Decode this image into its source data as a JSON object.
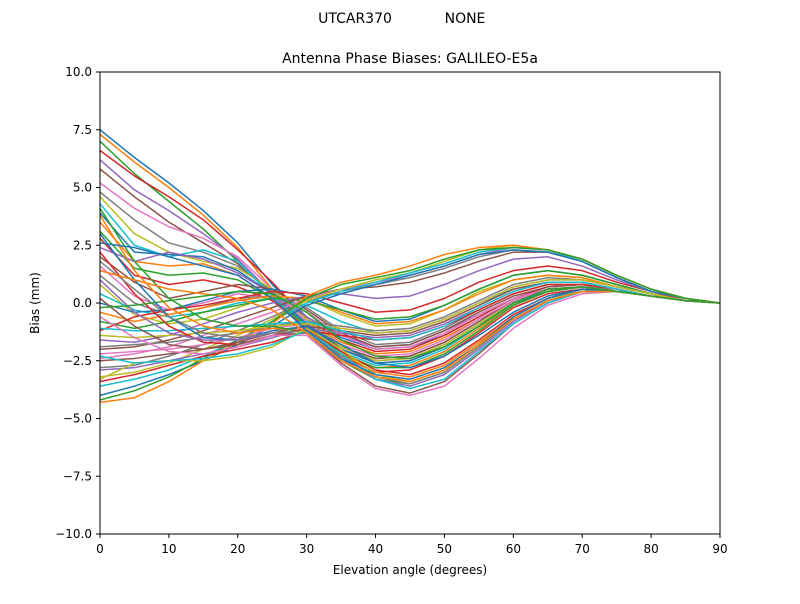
{
  "figure": {
    "suptitle_left": "UTCAR370",
    "suptitle_right": "NONE"
  },
  "chart_data": {
    "type": "line",
    "title": "Antenna Phase Biases: GALILEO-E5a",
    "xlabel": "Elevation angle (degrees)",
    "ylabel": "Bias (mm)",
    "xlim": [
      0,
      90
    ],
    "ylim": [
      -10,
      10
    ],
    "xticks": [
      0,
      10,
      20,
      30,
      40,
      50,
      60,
      70,
      80,
      90
    ],
    "yticks": [
      -10.0,
      -7.5,
      -5.0,
      -2.5,
      0.0,
      2.5,
      5.0,
      7.5,
      10.0
    ],
    "ytick_labels": [
      "−10.0",
      "−7.5",
      "−5.0",
      "−2.5",
      "0.0",
      "2.5",
      "5.0",
      "7.5",
      "10.0"
    ],
    "grid": false,
    "legend": "none",
    "colors": [
      "#1f77b4",
      "#ff7f0e",
      "#2ca02c",
      "#d62728",
      "#9467bd",
      "#8c564b",
      "#e377c2",
      "#7f7f7f",
      "#bcbd22",
      "#17becf"
    ],
    "x": [
      0,
      5,
      10,
      15,
      20,
      25,
      30,
      35,
      40,
      45,
      50,
      55,
      60,
      65,
      70,
      75,
      80,
      85,
      90
    ],
    "series": [
      {
        "values": [
          7.5,
          6.3,
          5.2,
          4.0,
          2.6,
          0.8,
          -0.6,
          -1.5,
          -2.0,
          -1.9,
          -1.4,
          -0.6,
          0.2,
          0.6,
          0.7,
          0.5,
          0.3,
          0.1,
          0.0
        ]
      },
      {
        "values": [
          7.3,
          6.1,
          5.0,
          3.8,
          2.4,
          0.6,
          -0.8,
          -1.7,
          -2.2,
          -2.1,
          -1.5,
          -0.7,
          0.1,
          0.6,
          0.7,
          0.5,
          0.3,
          0.1,
          0.0
        ]
      },
      {
        "values": [
          7.0,
          5.6,
          4.4,
          3.2,
          1.8,
          0.3,
          -1.0,
          -1.9,
          -2.4,
          -2.3,
          -1.7,
          -0.8,
          0.1,
          0.6,
          0.7,
          0.5,
          0.3,
          0.1,
          0.0
        ]
      },
      {
        "values": [
          6.6,
          5.5,
          4.6,
          3.6,
          2.3,
          0.9,
          -0.7,
          -1.6,
          -2.1,
          -2.0,
          -1.4,
          -0.6,
          0.2,
          0.7,
          0.8,
          0.5,
          0.3,
          0.1,
          0.0
        ]
      },
      {
        "values": [
          6.2,
          4.9,
          4.0,
          3.0,
          1.9,
          0.4,
          -1.0,
          -2.0,
          -2.5,
          -2.4,
          -1.8,
          -0.9,
          0.0,
          0.5,
          0.7,
          0.5,
          0.3,
          0.1,
          0.0
        ]
      },
      {
        "values": [
          5.8,
          4.6,
          3.5,
          2.6,
          1.7,
          0.4,
          -0.9,
          -1.9,
          -2.4,
          -2.3,
          -1.7,
          -0.8,
          0.1,
          0.6,
          0.7,
          0.5,
          0.3,
          0.1,
          0.0
        ]
      },
      {
        "values": [
          5.2,
          4.1,
          3.3,
          2.8,
          2.0,
          0.6,
          -0.8,
          -1.8,
          -2.3,
          -2.2,
          -1.6,
          -0.7,
          0.1,
          0.6,
          0.7,
          0.5,
          0.3,
          0.1,
          0.0
        ]
      },
      {
        "values": [
          4.8,
          3.6,
          2.6,
          2.2,
          1.6,
          0.5,
          -0.9,
          -2.0,
          -2.6,
          -2.5,
          -1.9,
          -1.0,
          0.0,
          0.5,
          0.7,
          0.5,
          0.3,
          0.1,
          0.0
        ]
      },
      {
        "values": [
          4.6,
          3.0,
          2.2,
          1.8,
          1.5,
          0.6,
          -0.7,
          -1.9,
          -2.5,
          -2.4,
          -1.8,
          -0.9,
          0.0,
          0.5,
          0.7,
          0.5,
          0.3,
          0.1,
          0.0
        ]
      },
      {
        "values": [
          4.3,
          2.5,
          2.0,
          2.3,
          1.8,
          0.3,
          -1.0,
          -2.1,
          -2.7,
          -2.6,
          -2.0,
          -1.0,
          -0.1,
          0.5,
          0.7,
          0.5,
          0.3,
          0.1,
          0.0
        ]
      },
      {
        "values": [
          3.9,
          2.2,
          2.1,
          2.0,
          1.4,
          0.4,
          -0.9,
          -2.0,
          -2.6,
          -2.5,
          -1.9,
          -1.0,
          0.0,
          0.5,
          0.7,
          0.5,
          0.3,
          0.1,
          0.0
        ]
      },
      {
        "values": [
          3.5,
          1.8,
          1.6,
          1.7,
          1.2,
          0.2,
          -1.1,
          -2.2,
          -2.8,
          -2.7,
          -2.1,
          -1.1,
          -0.1,
          0.5,
          0.7,
          0.5,
          0.3,
          0.1,
          0.0
        ]
      },
      {
        "values": [
          3.1,
          1.5,
          1.2,
          1.3,
          1.0,
          0.2,
          -1.0,
          -2.2,
          -2.8,
          -2.8,
          -2.2,
          -1.2,
          -0.1,
          0.5,
          0.7,
          0.5,
          0.3,
          0.1,
          0.0
        ]
      },
      {
        "values": [
          2.8,
          1.2,
          0.8,
          1.0,
          0.7,
          0.1,
          -1.1,
          -2.3,
          -3.0,
          -2.9,
          -2.3,
          -1.3,
          -0.2,
          0.4,
          0.6,
          0.5,
          0.3,
          0.1,
          0.0
        ]
      },
      {
        "values": [
          2.4,
          1.8,
          2.2,
          1.9,
          1.3,
          0.4,
          -0.6,
          -1.4,
          -1.9,
          -1.8,
          -1.2,
          -0.5,
          0.2,
          0.6,
          0.7,
          0.5,
          0.3,
          0.1,
          0.0
        ]
      },
      {
        "values": [
          2.0,
          0.9,
          0.2,
          0.5,
          0.8,
          0.6,
          -0.3,
          -1.3,
          -1.9,
          -1.8,
          -1.2,
          -0.4,
          0.3,
          0.7,
          0.8,
          0.5,
          0.3,
          0.1,
          0.0
        ]
      },
      {
        "values": [
          1.6,
          0.3,
          -0.3,
          0.0,
          0.4,
          0.2,
          -0.4,
          -1.4,
          -2.0,
          -1.9,
          -1.3,
          -0.5,
          0.2,
          0.6,
          0.7,
          0.5,
          0.3,
          0.1,
          0.0
        ]
      },
      {
        "values": [
          1.2,
          0.0,
          -0.5,
          -0.2,
          0.2,
          0.3,
          -0.2,
          -1.2,
          -1.8,
          -1.7,
          -1.1,
          -0.3,
          0.4,
          0.8,
          0.8,
          0.5,
          0.3,
          0.1,
          0.0
        ]
      },
      {
        "values": [
          0.8,
          -0.5,
          -0.9,
          -0.7,
          -0.2,
          0.3,
          0.2,
          -0.5,
          -1.0,
          -0.9,
          -0.3,
          0.5,
          1.0,
          1.2,
          1.1,
          0.7,
          0.4,
          0.1,
          0.0
        ]
      },
      {
        "values": [
          0.4,
          -0.3,
          -0.6,
          -0.4,
          0.0,
          0.2,
          -0.1,
          -0.8,
          -1.3,
          -1.2,
          -0.7,
          0.0,
          0.6,
          0.9,
          0.9,
          0.6,
          0.3,
          0.1,
          0.0
        ]
      },
      {
        "values": [
          0.0,
          -0.4,
          -0.3,
          0.1,
          0.5,
          0.6,
          0.3,
          -0.3,
          -0.8,
          -0.7,
          -0.1,
          0.6,
          1.2,
          1.4,
          1.2,
          0.8,
          0.4,
          0.1,
          0.0
        ]
      },
      {
        "values": [
          -0.4,
          -0.8,
          -0.5,
          -0.2,
          0.1,
          0.3,
          0.2,
          -0.4,
          -0.9,
          -0.8,
          -0.3,
          0.4,
          1.0,
          1.2,
          1.1,
          0.7,
          0.4,
          0.1,
          0.0
        ]
      },
      {
        "values": [
          -0.8,
          -1.1,
          -0.8,
          -0.4,
          -0.1,
          0.2,
          0.1,
          -0.3,
          -0.7,
          -0.6,
          -0.1,
          0.6,
          1.2,
          1.4,
          1.2,
          0.8,
          0.4,
          0.1,
          0.0
        ]
      },
      {
        "values": [
          -1.2,
          -0.6,
          -0.3,
          -0.1,
          0.2,
          0.5,
          0.4,
          0.0,
          -0.4,
          -0.3,
          0.2,
          0.9,
          1.4,
          1.6,
          1.4,
          0.9,
          0.5,
          0.1,
          0.0
        ]
      },
      {
        "values": [
          -1.6,
          -1.7,
          -1.4,
          -0.9,
          -0.4,
          0.0,
          0.3,
          0.4,
          0.2,
          0.3,
          0.8,
          1.4,
          1.9,
          2.0,
          1.6,
          1.0,
          0.5,
          0.2,
          0.0
        ]
      },
      {
        "values": [
          -2.0,
          -1.9,
          -1.6,
          -1.2,
          -0.7,
          -0.2,
          0.3,
          0.6,
          0.7,
          0.9,
          1.3,
          1.8,
          2.2,
          2.2,
          1.8,
          1.1,
          0.5,
          0.2,
          0.0
        ]
      },
      {
        "values": [
          -2.4,
          -2.2,
          -1.9,
          -1.4,
          -0.9,
          -0.4,
          0.2,
          0.6,
          0.9,
          1.2,
          1.6,
          2.1,
          2.4,
          2.3,
          1.9,
          1.2,
          0.6,
          0.2,
          0.0
        ]
      },
      {
        "values": [
          -2.8,
          -2.7,
          -2.3,
          -1.8,
          -1.2,
          -0.6,
          0.1,
          0.5,
          0.8,
          1.1,
          1.5,
          2.0,
          2.3,
          2.2,
          1.8,
          1.1,
          0.5,
          0.2,
          0.0
        ]
      },
      {
        "values": [
          -3.2,
          -3.0,
          -2.6,
          -2.0,
          -1.4,
          -0.7,
          0.1,
          0.6,
          1.0,
          1.3,
          1.8,
          2.3,
          2.5,
          2.3,
          1.9,
          1.2,
          0.6,
          0.2,
          0.0
        ]
      },
      {
        "values": [
          -3.6,
          -3.3,
          -2.9,
          -2.3,
          -1.6,
          -0.8,
          0.0,
          0.5,
          0.9,
          1.3,
          1.7,
          2.2,
          2.4,
          2.3,
          1.8,
          1.1,
          0.5,
          0.2,
          0.0
        ]
      },
      {
        "values": [
          -4.0,
          -3.6,
          -3.1,
          -2.5,
          -1.8,
          -1.0,
          -0.1,
          0.4,
          0.8,
          1.2,
          1.6,
          2.1,
          2.3,
          2.2,
          1.8,
          1.1,
          0.5,
          0.2,
          0.0
        ]
      },
      {
        "values": [
          -4.3,
          -4.1,
          -3.4,
          -2.5,
          -1.7,
          -0.9,
          0.3,
          0.9,
          1.2,
          1.6,
          2.1,
          2.4,
          2.5,
          2.3,
          1.9,
          1.2,
          0.6,
          0.2,
          0.0
        ]
      },
      {
        "values": [
          -4.2,
          -3.8,
          -3.2,
          -2.4,
          -1.6,
          -0.8,
          0.2,
          0.8,
          1.1,
          1.4,
          1.9,
          2.3,
          2.4,
          2.3,
          1.9,
          1.2,
          0.6,
          0.2,
          0.0
        ]
      },
      {
        "values": [
          -3.4,
          -3.1,
          -2.7,
          -2.3,
          -2.0,
          -1.7,
          -1.2,
          -1.4,
          -1.6,
          -1.5,
          -1.0,
          -0.3,
          0.4,
          0.8,
          0.8,
          0.6,
          0.3,
          0.1,
          0.0
        ]
      },
      {
        "values": [
          -2.9,
          -2.8,
          -2.5,
          -2.2,
          -1.9,
          -1.5,
          -1.1,
          -1.3,
          -1.5,
          -1.4,
          -0.9,
          -0.2,
          0.5,
          0.9,
          0.9,
          0.6,
          0.3,
          0.1,
          0.0
        ]
      },
      {
        "values": [
          -2.5,
          -2.4,
          -2.2,
          -2.0,
          -1.7,
          -1.3,
          -1.0,
          -1.2,
          -1.4,
          -1.3,
          -0.8,
          -0.1,
          0.6,
          0.9,
          0.9,
          0.6,
          0.3,
          0.1,
          0.0
        ]
      },
      {
        "values": [
          -2.2,
          -2.1,
          -2.0,
          -1.8,
          -1.5,
          -1.1,
          -0.9,
          -1.1,
          -1.3,
          -1.2,
          -0.7,
          0.0,
          0.7,
          1.0,
          1.0,
          0.7,
          0.4,
          0.1,
          0.0
        ]
      },
      {
        "values": [
          -1.9,
          -1.8,
          -1.7,
          -1.5,
          -1.3,
          -1.0,
          -0.8,
          -1.0,
          -1.2,
          -1.1,
          -0.6,
          0.1,
          0.8,
          1.1,
          1.0,
          0.7,
          0.4,
          0.1,
          0.0
        ]
      },
      {
        "values": [
          -1.4,
          -1.5,
          -1.4,
          -1.3,
          -1.2,
          -1.0,
          -0.9,
          -1.1,
          -1.3,
          -1.2,
          -0.7,
          0.0,
          0.7,
          1.0,
          1.0,
          0.7,
          0.4,
          0.1,
          0.0
        ]
      },
      {
        "values": [
          -1.1,
          -1.2,
          -1.2,
          -1.1,
          -1.0,
          -0.9,
          -0.8,
          -1.2,
          -1.6,
          -1.5,
          -1.0,
          -0.2,
          0.5,
          0.9,
          0.9,
          0.6,
          0.3,
          0.1,
          0.0
        ]
      },
      {
        "values": [
          3.0,
          1.0,
          -0.6,
          -1.5,
          -1.6,
          -1.2,
          -1.0,
          -1.8,
          -2.6,
          -2.8,
          -2.3,
          -1.4,
          -0.4,
          0.3,
          0.6,
          0.5,
          0.3,
          0.1,
          0.0
        ]
      },
      {
        "values": [
          3.8,
          1.4,
          -0.2,
          -1.0,
          -1.3,
          -1.1,
          -1.2,
          -2.2,
          -3.0,
          -3.2,
          -2.7,
          -1.7,
          -0.6,
          0.2,
          0.6,
          0.5,
          0.3,
          0.1,
          0.0
        ]
      },
      {
        "values": [
          4.1,
          1.8,
          0.2,
          -0.7,
          -1.0,
          -1.0,
          -1.3,
          -2.5,
          -3.3,
          -3.5,
          -3.0,
          -1.9,
          -0.7,
          0.1,
          0.5,
          0.5,
          0.3,
          0.1,
          0.0
        ]
      },
      {
        "values": [
          2.2,
          0.4,
          -1.0,
          -1.7,
          -1.8,
          -1.4,
          -1.1,
          -2.1,
          -2.9,
          -3.1,
          -2.6,
          -1.6,
          -0.5,
          0.2,
          0.6,
          0.5,
          0.3,
          0.1,
          0.0
        ]
      },
      {
        "values": [
          1.0,
          -0.4,
          -1.3,
          -1.6,
          -1.6,
          -1.3,
          -1.2,
          -2.4,
          -3.3,
          -3.6,
          -3.1,
          -2.0,
          -0.8,
          0.1,
          0.5,
          0.5,
          0.3,
          0.1,
          0.0
        ]
      },
      {
        "values": [
          0.2,
          -1.0,
          -1.8,
          -2.0,
          -1.8,
          -1.4,
          -1.3,
          -2.6,
          -3.6,
          -3.9,
          -3.4,
          -2.2,
          -0.9,
          0.0,
          0.5,
          0.5,
          0.3,
          0.1,
          0.0
        ]
      },
      {
        "values": [
          -0.6,
          -1.5,
          -2.1,
          -2.2,
          -1.9,
          -1.4,
          -1.4,
          -2.7,
          -3.7,
          -4.0,
          -3.6,
          -2.4,
          -1.1,
          -0.1,
          0.4,
          0.5,
          0.3,
          0.1,
          0.0
        ]
      },
      {
        "values": [
          1.8,
          0.6,
          -0.6,
          -1.3,
          -1.5,
          -1.3,
          -1.2,
          -2.3,
          -3.2,
          -3.5,
          -3.0,
          -1.9,
          -0.7,
          0.1,
          0.5,
          0.5,
          0.3,
          0.1,
          0.0
        ]
      },
      {
        "values": [
          -3.3,
          -2.6,
          -2.5,
          -2.5,
          -2.3,
          -1.9,
          -1.1,
          -2.0,
          -3.1,
          -3.4,
          -2.9,
          -1.8,
          -0.6,
          0.2,
          0.5,
          0.5,
          0.3,
          0.1,
          0.0
        ]
      },
      {
        "values": [
          -2.3,
          -2.6,
          -2.5,
          -2.4,
          -2.2,
          -1.8,
          -1.2,
          -2.2,
          -3.3,
          -3.7,
          -3.3,
          -2.1,
          -0.9,
          0.0,
          0.5,
          0.5,
          0.3,
          0.1,
          0.0
        ]
      },
      {
        "values": [
          2.6,
          2.4,
          2.0,
          1.6,
          1.2,
          0.2,
          -1.2,
          -2.4,
          -3.1,
          -3.3,
          -2.8,
          -1.8,
          -0.6,
          0.2,
          0.6,
          0.5,
          0.3,
          0.1,
          0.0
        ]
      },
      {
        "values": [
          1.4,
          1.0,
          0.6,
          0.4,
          0.2,
          -0.3,
          -1.3,
          -2.5,
          -3.2,
          -3.4,
          -2.9,
          -1.8,
          -0.7,
          0.1,
          0.5,
          0.5,
          0.3,
          0.1,
          0.0
        ]
      },
      {
        "values": [
          -0.2,
          -0.1,
          0.1,
          0.3,
          0.5,
          0.4,
          -0.4,
          -1.6,
          -2.3,
          -2.4,
          -1.9,
          -1.0,
          0.0,
          0.6,
          0.7,
          0.5,
          0.3,
          0.1,
          0.0
        ]
      }
    ]
  }
}
